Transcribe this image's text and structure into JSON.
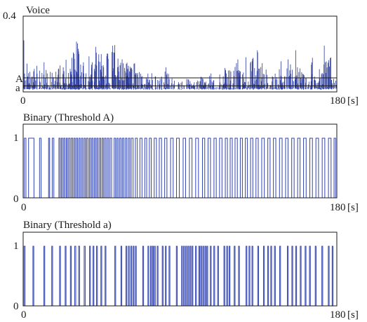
{
  "chart_data": [
    {
      "type": "line",
      "title": "Voice",
      "x_unit": "[s]",
      "xlim": [
        0,
        180
      ],
      "ylim": [
        0,
        0.4
      ],
      "x_ticks": [
        "0",
        "180"
      ],
      "y_ticks": [
        "0.4"
      ],
      "thresholds": [
        {
          "label": "A",
          "value": 0.074
        },
        {
          "label": "a",
          "value": 0.032
        }
      ],
      "color": "#2b3a9e",
      "envelope": {
        "x": [
          0,
          2,
          4,
          6,
          8,
          10,
          12,
          14,
          16,
          18,
          20,
          22,
          24,
          26,
          28,
          30,
          32,
          34,
          36,
          38,
          40,
          42,
          44,
          46,
          48,
          50,
          52,
          54,
          56,
          58,
          60,
          62,
          64,
          66,
          68,
          70,
          72,
          74,
          76,
          78,
          80,
          82,
          84,
          86,
          88,
          90,
          92,
          94,
          96,
          98,
          100,
          102,
          104,
          106,
          108,
          110,
          112,
          114,
          116,
          118,
          120,
          122,
          124,
          126,
          128,
          130,
          132,
          134,
          136,
          138,
          140,
          142,
          144,
          146,
          148,
          150,
          152,
          154,
          156,
          158,
          160,
          162,
          164,
          166,
          168,
          170,
          172,
          174,
          176,
          178,
          180
        ],
        "max": [
          0.3,
          0.16,
          0.1,
          0.12,
          0.14,
          0.1,
          0.16,
          0.09,
          0.11,
          0.08,
          0.17,
          0.12,
          0.14,
          0.24,
          0.18,
          0.34,
          0.2,
          0.18,
          0.1,
          0.22,
          0.15,
          0.26,
          0.19,
          0.3,
          0.22,
          0.16,
          0.28,
          0.17,
          0.2,
          0.13,
          0.16,
          0.12,
          0.2,
          0.11,
          0.09,
          0.07,
          0.14,
          0.1,
          0.08,
          0.06,
          0.09,
          0.13,
          0.08,
          0.07,
          0.05,
          0.06,
          0.05,
          0.07,
          0.06,
          0.05,
          0.06,
          0.08,
          0.06,
          0.07,
          0.1,
          0.06,
          0.05,
          0.16,
          0.2,
          0.12,
          0.1,
          0.14,
          0.2,
          0.08,
          0.22,
          0.15,
          0.18,
          0.24,
          0.14,
          0.16,
          0.1,
          0.08,
          0.12,
          0.06,
          0.18,
          0.08,
          0.22,
          0.14,
          0.24,
          0.14,
          0.1,
          0.08,
          0.06,
          0.18,
          0.07,
          0.12,
          0.26,
          0.22,
          0.2,
          0.14,
          0.1
        ]
      }
    },
    {
      "type": "line",
      "title": "Binary (Threshold A)",
      "x_unit": "[s]",
      "xlim": [
        0,
        180
      ],
      "ylim": [
        0,
        1
      ],
      "x_ticks": [
        "0",
        "180"
      ],
      "y_ticks": [
        "0",
        "1"
      ],
      "color": "#3344b0",
      "transitions_s": [
        0.7,
        1.6,
        3.1,
        6.2,
        9.4,
        10.3,
        14.6,
        15.2,
        16.7,
        17.6,
        20.5,
        21.2,
        21.9,
        22.6,
        23.3,
        24.0,
        24.8,
        25.4,
        26.1,
        26.9,
        27.6,
        28.4,
        29.1,
        29.8,
        30.5,
        31.2,
        32.0,
        32.7,
        33.5,
        34.2,
        35.0,
        35.7,
        36.4,
        37.2,
        38.0,
        38.7,
        39.4,
        40.1,
        40.9,
        41.6,
        42.3,
        43.0,
        43.8,
        44.5,
        45.3,
        46.0,
        46.7,
        47.5,
        48.3,
        49.1,
        49.9,
        50.8,
        52.2,
        53.0,
        53.8,
        54.5,
        55.4,
        56.2,
        57.0,
        57.8,
        58.7,
        59.5,
        60.4,
        61.2,
        62.0,
        63.1,
        64.4,
        65.5,
        67.0,
        68.2,
        69.8,
        70.9,
        72.4,
        73.5,
        75.2,
        76.5,
        78.1,
        79.4,
        81.2,
        82.5,
        84.6,
        86.1,
        88.0,
        89.6,
        91.8,
        93.2,
        95.4,
        96.9,
        99.0,
        100.6,
        102.9,
        104.2,
        106.1,
        107.5,
        109.5,
        110.8,
        112.7,
        114.1,
        116.0,
        117.2,
        118.8,
        120.0,
        121.6,
        122.9,
        124.6,
        125.8,
        127.5,
        128.7,
        130.5,
        131.8,
        133.6,
        134.9,
        136.9,
        138.4,
        140.4,
        141.7,
        143.6,
        145.0,
        147.1,
        148.6,
        150.6,
        152.0,
        154.1,
        155.5,
        157.5,
        158.9,
        160.9,
        162.4,
        164.5,
        166.0,
        168.0,
        169.5,
        171.6,
        173.1,
        175.2,
        176.7,
        178.4,
        179.3
      ]
    },
    {
      "type": "line",
      "title": "Binary (Threshold a)",
      "x_unit": "[s]",
      "xlim": [
        0,
        180
      ],
      "ylim": [
        0,
        1
      ],
      "x_ticks": [
        "0",
        "180"
      ],
      "y_ticks": [
        "0",
        "1"
      ],
      "color": "#3344b0",
      "transitions_s": [
        0.5,
        1.1,
        5.6,
        6.1,
        11.9,
        12.4,
        16.4,
        16.9,
        20.9,
        21.4,
        24.1,
        24.6,
        27.1,
        27.6,
        29.6,
        30.2,
        31.8,
        32.4,
        35.0,
        35.6,
        38.1,
        38.6,
        40.1,
        40.6,
        42.1,
        42.6,
        44.6,
        45.1,
        47.0,
        47.5,
        52.6,
        53.1,
        56.1,
        56.6,
        59.0,
        59.5,
        60.4,
        60.9,
        61.8,
        62.3,
        63.1,
        63.6,
        64.4,
        64.9,
        68.6,
        69.1,
        71.6,
        72.1,
        73.1,
        73.6,
        74.2,
        74.7,
        75.3,
        75.8,
        76.9,
        77.4,
        79.8,
        80.3,
        81.6,
        82.1,
        83.7,
        84.2,
        87.9,
        88.4,
        90.9,
        91.4,
        92.1,
        92.6,
        93.3,
        93.8,
        94.5,
        95.0,
        95.7,
        96.2,
        96.9,
        97.4,
        98.9,
        99.4,
        100.8,
        101.3,
        101.9,
        102.4,
        103.1,
        103.6,
        104.3,
        104.8,
        105.4,
        105.9,
        107.4,
        107.9,
        109.4,
        109.9,
        111.6,
        112.1,
        115.2,
        115.7,
        116.8,
        117.3,
        118.2,
        118.7,
        121.1,
        121.6,
        123.6,
        124.1,
        127.9,
        128.4,
        129.6,
        130.1,
        131.3,
        131.8,
        134.6,
        135.1,
        137.9,
        138.4,
        140.3,
        140.8,
        142.1,
        142.6,
        144.2,
        144.7,
        147.2,
        147.7,
        151.6,
        152.1,
        154.2,
        154.7,
        156.4,
        156.9,
        159.0,
        159.5,
        161.8,
        162.3,
        164.3,
        164.8,
        167.6,
        168.1,
        171.4,
        171.9,
        175.1,
        175.6,
        177.3,
        177.8
      ]
    }
  ]
}
